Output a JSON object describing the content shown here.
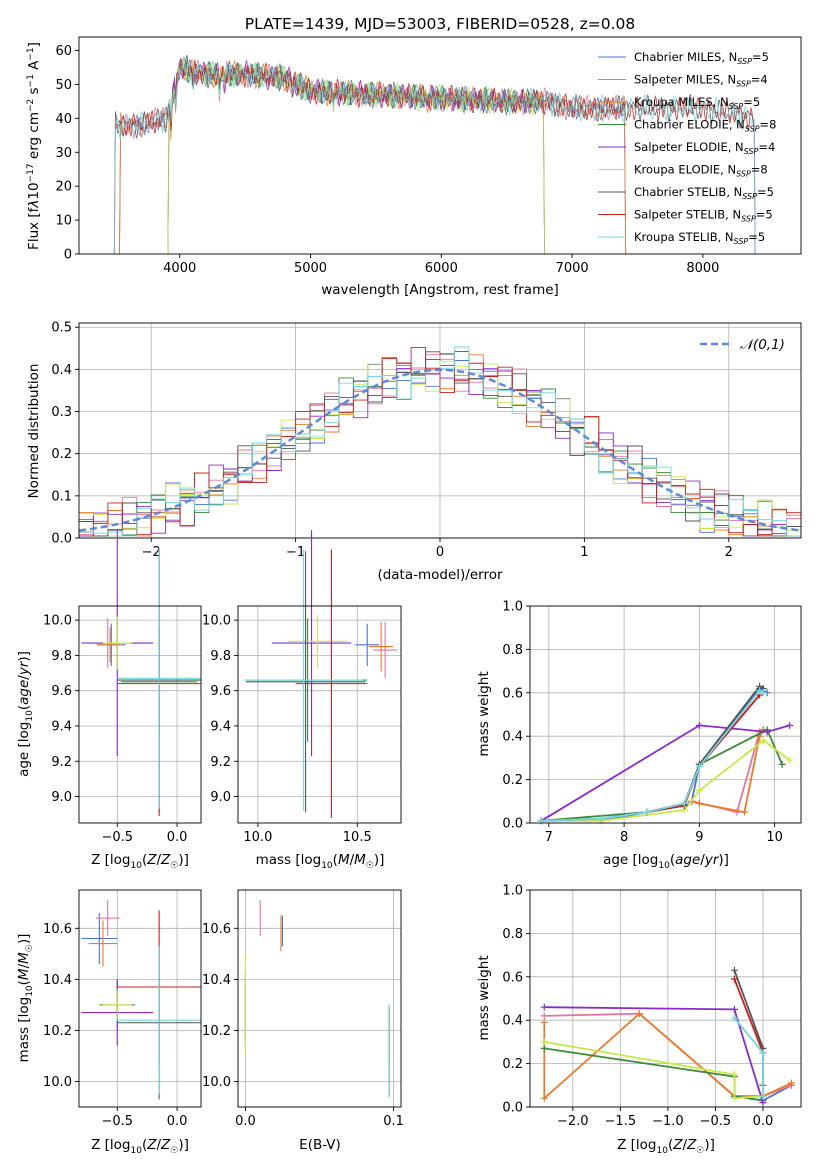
{
  "colors": {
    "Chabrier MILES": "#4a73d6",
    "Salpeter MILES": "#e8749b",
    "Kroupa MILES": "#e87a2b",
    "Chabrier ELODIE": "#3a8a3a",
    "Salpeter ELODIE": "#8a2bc9",
    "Kroupa ELODIE": "#c8e84a",
    "Chabrier STELIB": "#555555",
    "Salpeter STELIB": "#c42020",
    "Kroupa STELIB": "#72d6e0",
    "gauss": "#5b8ad6"
  },
  "models": [
    "Chabrier MILES",
    "Salpeter MILES",
    "Kroupa MILES",
    "Chabrier ELODIE",
    "Salpeter ELODIE",
    "Kroupa ELODIE",
    "Chabrier STELIB",
    "Salpeter STELIB",
    "Kroupa STELIB"
  ],
  "chart_data": [
    {
      "id": "spectrum",
      "type": "line",
      "title": "PLATE=1439, MJD=53003, FIBERID=0528, z=0.08",
      "xlabel": "wavelength [Angstrom, rest frame]",
      "ylabel": "Flux [f_λ 10^-17 erg cm^-2 s^-1 A^-1]",
      "xlim": [
        3230,
        8750
      ],
      "ylim": [
        0,
        64
      ],
      "xticks": [
        4000,
        5000,
        6000,
        7000,
        8000
      ],
      "yticks": [
        0,
        10,
        20,
        30,
        40,
        50,
        60
      ],
      "legend_position": "top-right",
      "legend": [
        {
          "model": "Chabrier MILES",
          "name": "Chabrier MILES",
          "n_ssp": "5"
        },
        {
          "model": "Salpeter MILES",
          "name": "Salpeter MILES",
          "n_ssp": "4"
        },
        {
          "model": "Kroupa MILES",
          "name": "Kroupa MILES",
          "n_ssp": "5"
        },
        {
          "model": "Chabrier ELODIE",
          "name": "Chabrier ELODIE",
          "n_ssp": "8"
        },
        {
          "model": "Salpeter ELODIE",
          "name": "Salpeter ELODIE",
          "n_ssp": "4"
        },
        {
          "model": "Kroupa ELODIE",
          "name": "Kroupa ELODIE",
          "n_ssp": "8"
        },
        {
          "model": "Chabrier STELIB",
          "name": "Chabrier STELIB",
          "n_ssp": "5"
        },
        {
          "model": "Salpeter STELIB",
          "name": "Salpeter STELIB",
          "n_ssp": "5"
        },
        {
          "model": "Kroupa STELIB",
          "name": "Kroupa STELIB",
          "n_ssp": "5"
        }
      ],
      "continuum": {
        "x": [
          3500,
          3700,
          3900,
          3950,
          4000,
          4200,
          4500,
          4800,
          5000,
          5500,
          6000,
          6500,
          6800,
          7000,
          7500,
          8000,
          8400
        ],
        "y": [
          38,
          38,
          40,
          48,
          55,
          53,
          53,
          52,
          48,
          47,
          46,
          45,
          45,
          43,
          43,
          43,
          40
        ]
      },
      "model_ranges": [
        {
          "model": "Chabrier MILES",
          "x": [
            3540,
            7410
          ]
        },
        {
          "model": "Salpeter MILES",
          "x": [
            3540,
            7410
          ]
        },
        {
          "model": "Kroupa MILES",
          "x": [
            3540,
            7410
          ]
        },
        {
          "model": "Chabrier ELODIE",
          "x": [
            3910,
            6790
          ]
        },
        {
          "model": "Salpeter ELODIE",
          "x": [
            3910,
            6790
          ]
        },
        {
          "model": "Kroupa ELODIE",
          "x": [
            3910,
            6790
          ]
        },
        {
          "model": "Chabrier STELIB",
          "x": [
            3500,
            8400
          ]
        },
        {
          "model": "Salpeter STELIB",
          "x": [
            3500,
            8400
          ]
        },
        {
          "model": "Kroupa STELIB",
          "x": [
            3500,
            8400
          ]
        }
      ]
    },
    {
      "id": "residuals",
      "type": "line",
      "xlabel": "(data-model)/error",
      "ylabel": "Normed distribution",
      "xlim": [
        -2.5,
        2.5
      ],
      "ylim": [
        0,
        0.51
      ],
      "xticks": [
        -2,
        -1,
        0,
        1,
        2
      ],
      "yticks": [
        0.0,
        0.1,
        0.2,
        0.3,
        0.4,
        0.5
      ],
      "grid": true,
      "legend_position": "top-right",
      "gaussian_label": "𝒩(0,1)",
      "bin_width": 0.1
    },
    {
      "id": "age_vs_Z",
      "type": "scatter",
      "xlabel": "Z [log10(Z/Z☉)]",
      "ylabel": "age [log10(age/yr)]",
      "xlim": [
        -0.82,
        0.2
      ],
      "ylim": [
        8.85,
        10.08
      ],
      "xticks": [
        -0.5,
        0.0
      ],
      "yticks": [
        9.0,
        9.2,
        9.4,
        9.6,
        9.8,
        10.0
      ],
      "grid": true,
      "points": [
        {
          "model": "Chabrier MILES",
          "x": -0.55,
          "xerr": 0.12,
          "y": 9.86,
          "yerr": 0.12
        },
        {
          "model": "Salpeter MILES",
          "x": -0.58,
          "xerr": 0.1,
          "y": 9.87,
          "yerr": 0.14
        },
        {
          "model": "Kroupa MILES",
          "x": -0.56,
          "xerr": 0.1,
          "y": 9.86,
          "yerr": 0.1
        },
        {
          "model": "Chabrier ELODIE",
          "x": -0.15,
          "xerr": 0.32,
          "y": 9.65,
          "yerr": 0.3
        },
        {
          "model": "Salpeter ELODIE",
          "x": -0.5,
          "xerr": 0.3,
          "y": 9.87,
          "yerr": 0.64
        },
        {
          "model": "Kroupa ELODIE",
          "x": -0.5,
          "xerr": 0.12,
          "y": 9.87,
          "yerr": 0.15
        },
        {
          "model": "Chabrier STELIB",
          "x": -0.15,
          "xerr": 0.35,
          "y": 9.66,
          "yerr": 0.75
        },
        {
          "model": "Salpeter STELIB",
          "x": -0.15,
          "xerr": 0.35,
          "y": 9.64,
          "yerr": 0.75
        },
        {
          "model": "Kroupa STELIB",
          "x": -0.15,
          "xerr": 0.35,
          "y": 9.67,
          "yerr": 0.74
        }
      ]
    },
    {
      "id": "age_vs_mass",
      "type": "scatter",
      "xlabel": "mass [log10(M/M☉)]",
      "ylabel": "",
      "xlim": [
        9.9,
        10.72
      ],
      "ylim": [
        8.85,
        10.08
      ],
      "xticks": [
        10.0,
        10.5
      ],
      "yticks": [
        9.0,
        9.2,
        9.4,
        9.6,
        9.8,
        10.0
      ],
      "grid": true,
      "points": [
        {
          "model": "Chabrier MILES",
          "x": 10.55,
          "xerr": 0.06,
          "y": 9.86,
          "yerr": 0.12
        },
        {
          "model": "Salpeter MILES",
          "x": 10.64,
          "xerr": 0.06,
          "y": 9.83,
          "yerr": 0.16
        },
        {
          "model": "Kroupa MILES",
          "x": 10.62,
          "xerr": 0.06,
          "y": 9.85,
          "yerr": 0.14
        },
        {
          "model": "Chabrier ELODIE",
          "x": 10.25,
          "xerr": 0.3,
          "y": 9.66,
          "yerr": 0.35
        },
        {
          "model": "Salpeter ELODIE",
          "x": 10.27,
          "xerr": 0.2,
          "y": 9.87,
          "yerr": 0.64
        },
        {
          "model": "Kroupa ELODIE",
          "x": 10.3,
          "xerr": 0.15,
          "y": 9.88,
          "yerr": 0.15
        },
        {
          "model": "Chabrier STELIB",
          "x": 10.24,
          "xerr": 0.3,
          "y": 9.65,
          "yerr": 0.74
        },
        {
          "model": "Salpeter STELIB",
          "x": 10.37,
          "xerr": 0.18,
          "y": 9.64,
          "yerr": 0.76
        },
        {
          "model": "Kroupa STELIB",
          "x": 10.23,
          "xerr": 0.3,
          "y": 9.66,
          "yerr": 0.74
        }
      ]
    },
    {
      "id": "weights_vs_age",
      "type": "line",
      "xlabel": "age [log10(age/yr)]",
      "ylabel": "mass weight",
      "xlim": [
        6.75,
        10.35
      ],
      "ylim": [
        0,
        1.0
      ],
      "xticks": [
        7,
        8,
        9,
        10
      ],
      "yticks": [
        0.0,
        0.2,
        0.4,
        0.6,
        0.8,
        1.0
      ],
      "grid": true,
      "series": [
        {
          "model": "Chabrier MILES",
          "x": [
            7.7,
            8.3,
            8.8,
            8.9,
            9.0,
            9.8,
            9.9
          ],
          "y": [
            0.01,
            0.05,
            0.08,
            0.1,
            0.27,
            0.62,
            0.6
          ]
        },
        {
          "model": "Salpeter MILES",
          "x": [
            8.9,
            9.5,
            9.8,
            9.85
          ],
          "y": [
            0.1,
            0.05,
            0.42,
            0.43
          ]
        },
        {
          "model": "Kroupa MILES",
          "x": [
            8.9,
            9.0,
            9.6,
            9.8,
            9.85
          ],
          "y": [
            0.1,
            0.09,
            0.05,
            0.4,
            0.43
          ]
        },
        {
          "model": "Chabrier ELODIE",
          "x": [
            6.9,
            8.3,
            8.8,
            9.0,
            9.9,
            10.1
          ],
          "y": [
            0.01,
            0.05,
            0.08,
            0.27,
            0.43,
            0.27
          ]
        },
        {
          "model": "Salpeter ELODIE",
          "x": [
            6.9,
            9.0,
            9.9,
            10.2
          ],
          "y": [
            0.01,
            0.45,
            0.42,
            0.45
          ]
        },
        {
          "model": "Kroupa ELODIE",
          "x": [
            6.9,
            7.7,
            8.8,
            9.0,
            9.85,
            10.2
          ],
          "y": [
            0.01,
            0.01,
            0.06,
            0.15,
            0.38,
            0.29
          ]
        },
        {
          "model": "Chabrier STELIB",
          "x": [
            6.9,
            7.7,
            8.3,
            8.8,
            9.0,
            9.8,
            9.85
          ],
          "y": [
            0.01,
            0.02,
            0.05,
            0.09,
            0.27,
            0.63,
            0.62
          ]
        },
        {
          "model": "Salpeter STELIB",
          "x": [
            8.3,
            8.8,
            9.0,
            9.8
          ],
          "y": [
            0.05,
            0.08,
            0.26,
            0.59
          ]
        },
        {
          "model": "Kroupa STELIB",
          "x": [
            6.9,
            7.7,
            8.3,
            8.8,
            9.0,
            9.8,
            9.85
          ],
          "y": [
            0.01,
            0.02,
            0.05,
            0.09,
            0.26,
            0.61,
            0.6
          ]
        }
      ]
    },
    {
      "id": "mass_vs_Z",
      "type": "scatter",
      "xlabel": "Z [log10(Z/Z☉)]",
      "ylabel": "mass [log10(M/M☉)]",
      "xlim": [
        -0.82,
        0.2
      ],
      "ylim": [
        9.9,
        10.75
      ],
      "xticks": [
        -0.5,
        0.0
      ],
      "yticks": [
        10.0,
        10.2,
        10.4,
        10.6
      ],
      "grid": true,
      "points": [
        {
          "model": "Chabrier MILES",
          "x": -0.65,
          "xerr": 0.15,
          "y": 10.56,
          "yerr": 0.1
        },
        {
          "model": "Salpeter MILES",
          "x": -0.58,
          "xerr": 0.1,
          "y": 10.64,
          "yerr": 0.07
        },
        {
          "model": "Kroupa MILES",
          "x": -0.62,
          "xerr": 0.12,
          "y": 10.54,
          "yerr": 0.09
        },
        {
          "model": "Chabrier ELODIE",
          "x": -0.5,
          "xerr": 0.15,
          "y": 10.3,
          "yerr": 0.1
        },
        {
          "model": "Salpeter ELODIE",
          "x": -0.5,
          "xerr": 0.3,
          "y": 10.27,
          "yerr": 0.13
        },
        {
          "model": "Kroupa ELODIE",
          "x": -0.5,
          "xerr": 0.12,
          "y": 10.3,
          "yerr": 0.06
        },
        {
          "model": "Chabrier STELIB",
          "x": -0.15,
          "xerr": 0.35,
          "y": 10.23,
          "yerr": 0.3
        },
        {
          "model": "Salpeter STELIB",
          "x": -0.15,
          "xerr": 0.35,
          "y": 10.37,
          "yerr": 0.3
        },
        {
          "model": "Kroupa STELIB",
          "x": -0.15,
          "xerr": 0.35,
          "y": 10.24,
          "yerr": 0.29
        }
      ]
    },
    {
      "id": "mass_vs_ebv",
      "type": "scatter",
      "xlabel": "E(B-V)",
      "ylabel": "",
      "xlim": [
        -0.005,
        0.105
      ],
      "ylim": [
        9.9,
        10.75
      ],
      "xticks": [
        0.0,
        0.1
      ],
      "yticks": [
        10.0,
        10.2,
        10.4,
        10.6
      ],
      "grid": true,
      "points": [
        {
          "model": "Chabrier MILES",
          "x": 0.025,
          "y": 10.59,
          "yerr": 0.06
        },
        {
          "model": "Salpeter MILES",
          "x": 0.01,
          "y": 10.64,
          "yerr": 0.07
        },
        {
          "model": "Kroupa MILES",
          "x": 0.024,
          "y": 10.58,
          "yerr": 0.07
        },
        {
          "model": "Chabrier ELODIE",
          "x": 0.0,
          "y": 10.3,
          "yerr": 0.13
        },
        {
          "model": "Salpeter ELODIE",
          "x": 0.0,
          "y": 10.27,
          "yerr": 0.13
        },
        {
          "model": "Kroupa ELODIE",
          "x": 0.0,
          "y": 10.3,
          "yerr": 0.2
        },
        {
          "model": "Chabrier STELIB",
          "x": 0.097,
          "y": 10.12,
          "yerr": 0.18
        },
        {
          "model": "Salpeter STELIB",
          "x": 0.097,
          "y": 10.18,
          "yerr": 0.11
        },
        {
          "model": "Kroupa STELIB",
          "x": 0.097,
          "y": 10.12,
          "yerr": 0.18
        }
      ]
    },
    {
      "id": "weights_vs_Z",
      "type": "line",
      "xlabel": "Z [log10(Z/Z☉)]",
      "ylabel": "mass weight",
      "xlim": [
        -2.45,
        0.4
      ],
      "ylim": [
        0,
        1.0
      ],
      "xticks": [
        -2.0,
        -1.5,
        -1.0,
        -0.5,
        0.0
      ],
      "yticks": [
        0.0,
        0.2,
        0.4,
        0.6,
        0.8,
        1.0
      ],
      "grid": true,
      "series": [
        {
          "model": "Chabrier MILES",
          "x": [
            -0.3,
            0.0,
            0.3
          ],
          "y": [
            0.05,
            0.03,
            0.1
          ]
        },
        {
          "model": "Salpeter MILES",
          "x": [
            -2.3,
            -1.3,
            -0.3,
            0.0,
            0.3
          ],
          "y": [
            0.42,
            0.43,
            0.05,
            0.05,
            0.1
          ]
        },
        {
          "model": "Kroupa MILES",
          "x": [
            -2.3,
            -2.3,
            -1.3,
            -0.3,
            0.0,
            0.3
          ],
          "y": [
            0.39,
            0.04,
            0.43,
            0.05,
            0.05,
            0.11
          ]
        },
        {
          "model": "Chabrier ELODIE",
          "x": [
            -2.3,
            -0.3,
            -0.3,
            0.0
          ],
          "y": [
            0.27,
            0.14,
            0.05,
            0.03
          ]
        },
        {
          "model": "Salpeter ELODIE",
          "x": [
            -2.3,
            -0.3,
            0.0
          ],
          "y": [
            0.46,
            0.45,
            0.02
          ]
        },
        {
          "model": "Kroupa ELODIE",
          "x": [
            -2.3,
            -0.3,
            -0.3,
            0.0
          ],
          "y": [
            0.3,
            0.15,
            0.04,
            0.05
          ]
        },
        {
          "model": "Chabrier STELIB",
          "x": [
            -0.3,
            0.0,
            0.0
          ],
          "y": [
            0.63,
            0.27,
            0.1
          ]
        },
        {
          "model": "Salpeter STELIB",
          "x": [
            -0.3,
            0.0
          ],
          "y": [
            0.59,
            0.25
          ]
        },
        {
          "model": "Kroupa STELIB",
          "x": [
            -0.3,
            0.0,
            0.0
          ],
          "y": [
            0.41,
            0.25,
            0.05
          ]
        }
      ]
    }
  ]
}
